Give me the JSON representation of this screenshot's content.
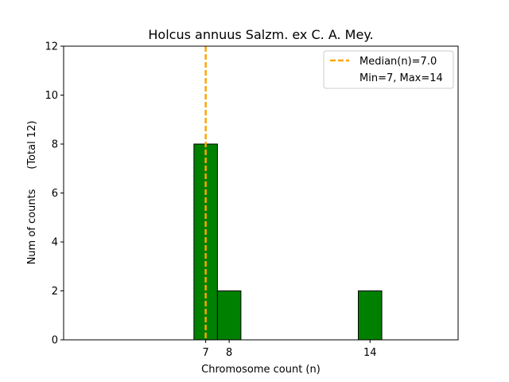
{
  "chart_data": {
    "type": "bar",
    "title": "Holcus annuus Salzm. ex C. A. Mey.",
    "xlabel": "Chromosome count (n)",
    "ylabel": "Num of counts      (Total 12)",
    "xticks": [
      7,
      8,
      14
    ],
    "yticks": [
      0,
      2,
      4,
      6,
      8,
      10,
      12
    ],
    "xlim": [
      0.95,
      17.75
    ],
    "ylim": [
      0,
      12
    ],
    "bins": [
      {
        "x0": 6.5,
        "x1": 7.5,
        "value": 8
      },
      {
        "x0": 7.5,
        "x1": 8.5,
        "value": 2
      },
      {
        "x0": 13.5,
        "x1": 14.5,
        "value": 2
      }
    ],
    "median": 7.0,
    "legend": {
      "position": "top-right",
      "entries": [
        "Median(n)=7.0",
        "Min=7, Max=14"
      ]
    },
    "colors": {
      "bar": "#008000",
      "bar_edge": "#000000",
      "median_line": "#FFA500"
    }
  }
}
